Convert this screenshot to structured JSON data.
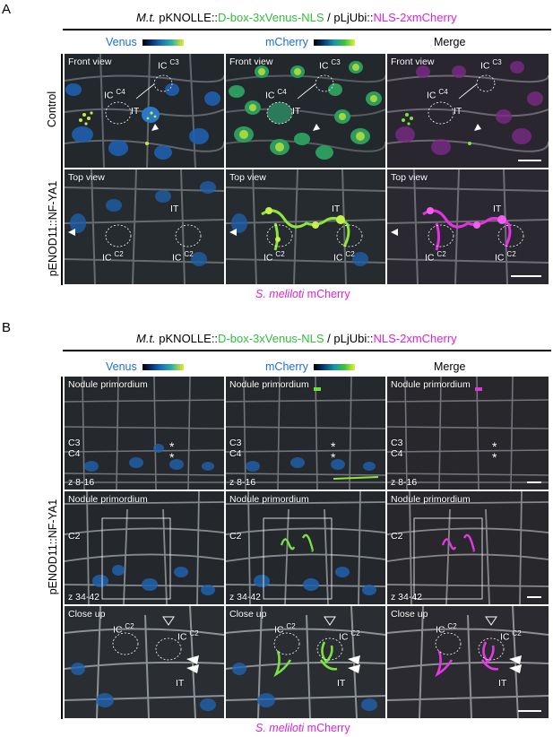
{
  "figure": {
    "panel_a": {
      "letter": "A",
      "title": {
        "italic": "M.t.",
        "p1": " pKNOLLE::",
        "green": "D-box-3xVenus-NLS",
        "sep": " / pLjUbi::",
        "magenta": "NLS-2xmCherry"
      },
      "columns": [
        "Venus",
        "mCherry",
        "Merge"
      ],
      "rows": [
        "Control",
        "pENOD11::NF-YA1"
      ],
      "caption": {
        "italic": "S. meliloti",
        "rest": " mCherry"
      },
      "row1": {
        "view": "Front view",
        "ic3": "IC",
        "ic3_sup": "C3",
        "ic4": "IC",
        "ic4_sup": "C4",
        "it": "IT"
      },
      "row2": {
        "view": "Top view",
        "it": "IT",
        "ic_l": "IC",
        "ic_l_sup": "C2",
        "ic_r": "IC",
        "ic_r_sup": "C2"
      }
    },
    "panel_b": {
      "letter": "B",
      "title": {
        "italic": "M.t.",
        "p1": " pKNOLLE::",
        "green": "D-box-3xVenus-NLS",
        "sep": " / pLjUbi::",
        "magenta": "NLS-2xmCherry"
      },
      "columns": [
        "Venus",
        "mCherry",
        "Merge"
      ],
      "row_label": "pENOD11::NF-YA1",
      "caption": {
        "italic": "S. meliloti",
        "rest": " mCherry"
      },
      "row1": {
        "view": "Nodule primordium",
        "c3": "C3",
        "c4": "C4",
        "z": "z 8-16",
        "star": "*"
      },
      "row2": {
        "view": "Nodule primordium",
        "c2": "C2",
        "z": "z 34-42"
      },
      "row3": {
        "view": "Close up",
        "ic_l": "IC",
        "ic_l_sup": "C2",
        "ic_r": "IC",
        "ic_r_sup": "C2",
        "it": "IT"
      }
    },
    "colors": {
      "green": "#2fbf3a",
      "magenta": "#e11ee1",
      "venus_blue": "#1e6fd0"
    }
  }
}
